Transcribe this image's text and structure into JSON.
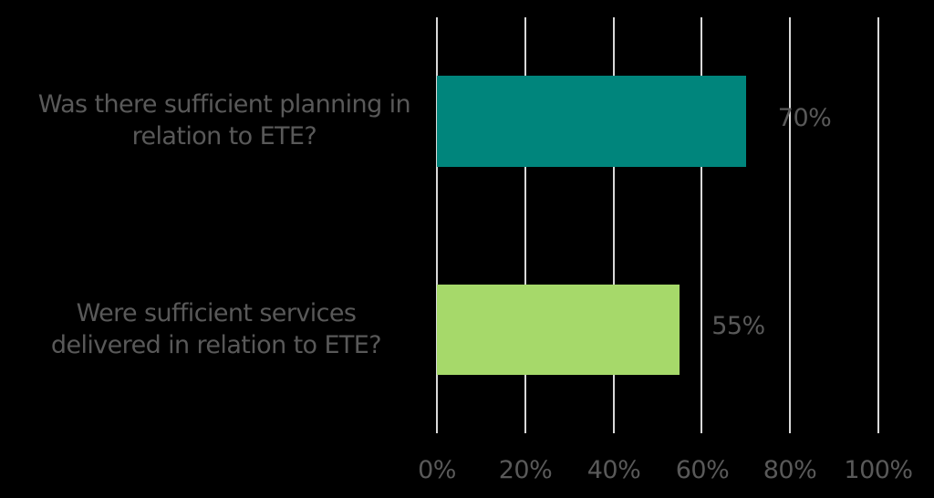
{
  "chart_data": {
    "type": "bar",
    "orientation": "horizontal",
    "title": "",
    "xlabel": "",
    "ylabel": "",
    "categories": [
      "Was there sufficient planning in relation to ETE?",
      "Were sufficient services delivered in relation to ETE?"
    ],
    "values": [
      70,
      55
    ],
    "value_labels": [
      "70%",
      "55%"
    ],
    "bar_colors": [
      "#00857c",
      "#a6d96a"
    ],
    "xlim": [
      0,
      100
    ],
    "x_ticks": [
      "0%",
      "20%",
      "40%",
      "60%",
      "80%",
      "100%"
    ],
    "grid": true,
    "legend": null
  },
  "labels": {
    "cat0_line1": "Was there sufficient planning in",
    "cat0_line2": "relation to ETE?",
    "cat1_line1": "Were sufficient services",
    "cat1_line2": "delivered in relation to ETE?"
  },
  "colors": {
    "background": "#000000",
    "text": "#595959",
    "gridline": "#d9d9d9"
  }
}
